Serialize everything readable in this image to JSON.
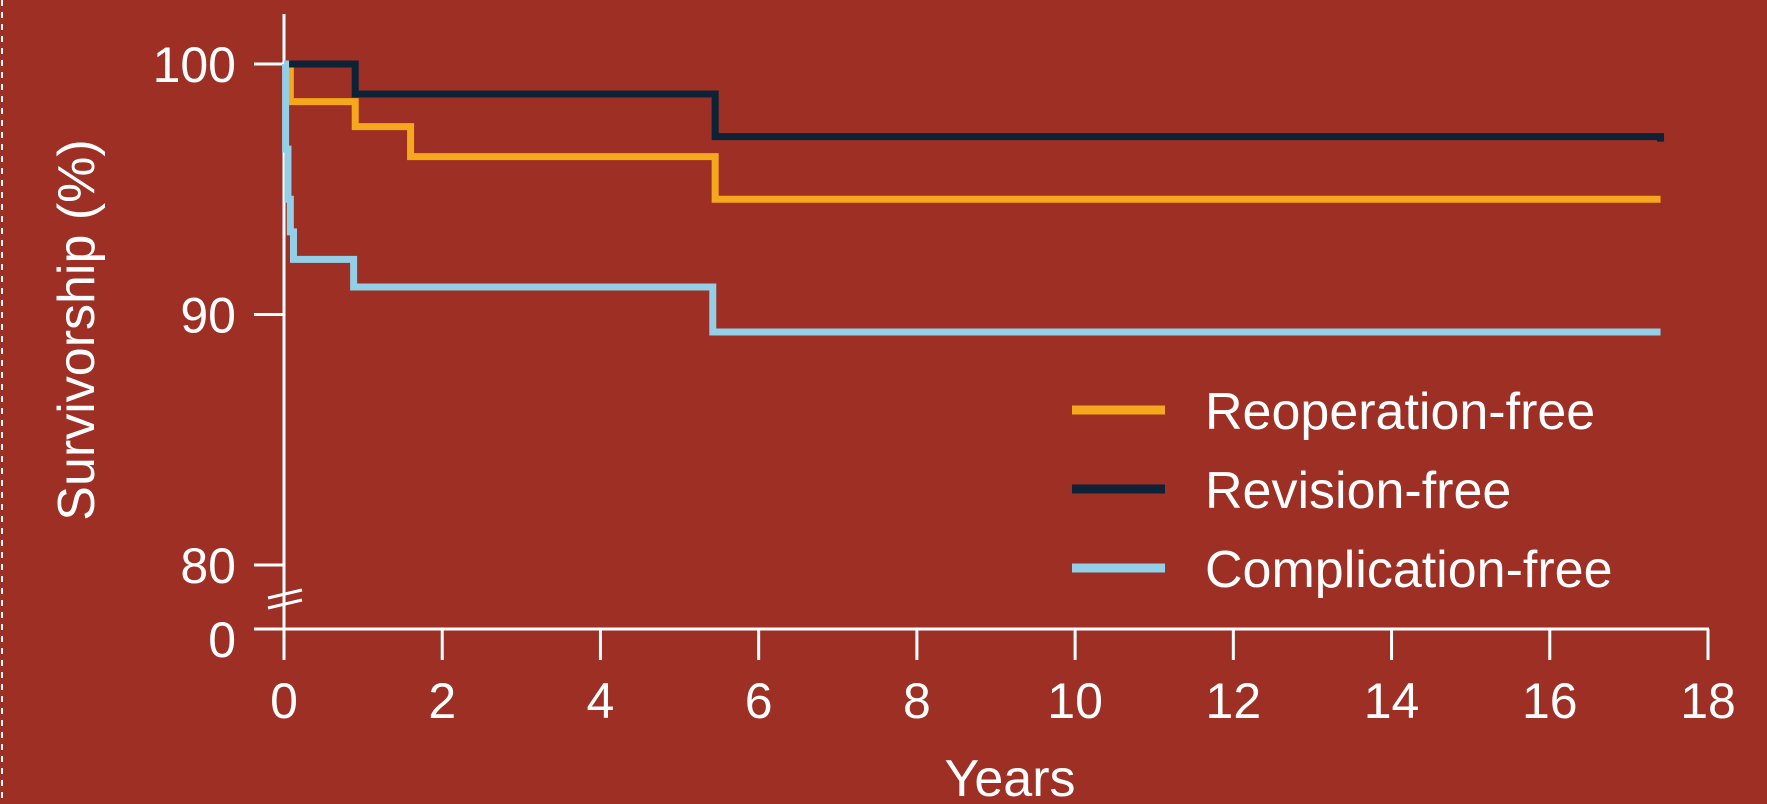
{
  "chart_data": {
    "type": "line",
    "step": true,
    "xlabel": "Years",
    "ylabel": "Survivorship (%)",
    "xlim": [
      0,
      18
    ],
    "ylim": [
      80,
      100
    ],
    "y_axis_break": true,
    "y_baseline_label": "0",
    "x_ticks": [
      0,
      2,
      4,
      6,
      8,
      10,
      12,
      14,
      16,
      18
    ],
    "y_ticks": [
      80,
      90,
      100
    ],
    "grid": false,
    "legend_position": "right",
    "background_color": "#9e2f24",
    "axis_color": "#ffffff",
    "series": [
      {
        "name": "Reoperation-free",
        "color": "#f6a81c",
        "x": [
          0,
          0.08,
          0.9,
          1.6,
          5.45,
          17.4
        ],
        "y": [
          100,
          98.5,
          97.5,
          96.3,
          94.6,
          94.6
        ]
      },
      {
        "name": "Revision-free",
        "color": "#0c2236",
        "x": [
          0,
          0.9,
          5.45,
          17.4
        ],
        "y": [
          100,
          98.8,
          97.1,
          96.9
        ]
      },
      {
        "name": "Complication-free",
        "color": "#93cfe6",
        "x": [
          0,
          0.02,
          0.05,
          0.08,
          0.12,
          0.88,
          5.42,
          17.4
        ],
        "y": [
          100,
          96.6,
          94.6,
          93.3,
          92.2,
          91.1,
          89.3,
          89.3
        ]
      }
    ]
  }
}
